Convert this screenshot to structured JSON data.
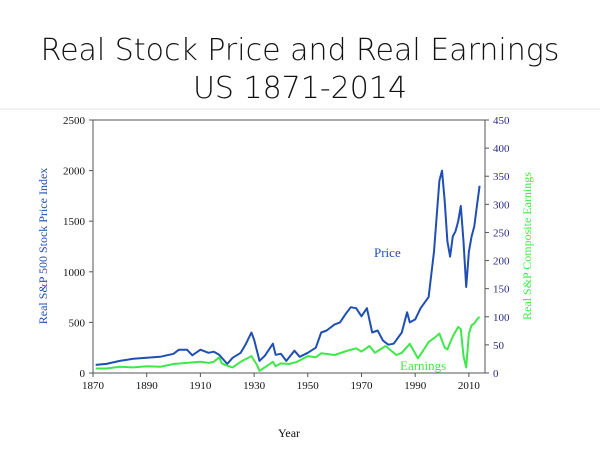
{
  "title_line_1": "Real Stock Price and Real Earnings",
  "title_line_2": "US 1871-2014",
  "colors": {
    "price": "#1f4fb4",
    "earnings": "#3fe84a",
    "axis": "#444444",
    "right_axis_text": "#2a2a8a"
  },
  "chart_data": {
    "type": "line",
    "title": "Real Stock Price and Real Earnings US 1871-2014",
    "xlabel": "Year",
    "ylabel_left": "Real S&P 500 Stock Price Index",
    "ylabel_right": "Real S&P Composite Earnings",
    "xlim": [
      1870,
      2016
    ],
    "ylim_left": [
      0,
      2500
    ],
    "ylim_right": [
      0,
      450
    ],
    "x_ticks": [
      "1870",
      "1890",
      "1910",
      "1930",
      "1950",
      "1970",
      "1990",
      "2010"
    ],
    "y_ticks_left": [
      "0",
      "500",
      "1000",
      "1500",
      "2000",
      "2500"
    ],
    "y_ticks_right": [
      "0",
      "50",
      "100",
      "150",
      "200",
      "250",
      "300",
      "350",
      "400",
      "450"
    ],
    "grid": false,
    "series": [
      {
        "name": "Price",
        "axis": "left",
        "points": [
          [
            1871,
            80
          ],
          [
            1875,
            90
          ],
          [
            1880,
            120
          ],
          [
            1885,
            140
          ],
          [
            1890,
            150
          ],
          [
            1895,
            160
          ],
          [
            1900,
            190
          ],
          [
            1902,
            230
          ],
          [
            1905,
            230
          ],
          [
            1907,
            175
          ],
          [
            1910,
            230
          ],
          [
            1913,
            200
          ],
          [
            1915,
            210
          ],
          [
            1917,
            180
          ],
          [
            1920,
            90
          ],
          [
            1922,
            150
          ],
          [
            1925,
            200
          ],
          [
            1927,
            290
          ],
          [
            1929,
            400
          ],
          [
            1930,
            330
          ],
          [
            1932,
            120
          ],
          [
            1934,
            170
          ],
          [
            1937,
            290
          ],
          [
            1938,
            180
          ],
          [
            1940,
            190
          ],
          [
            1942,
            120
          ],
          [
            1945,
            220
          ],
          [
            1947,
            160
          ],
          [
            1950,
            200
          ],
          [
            1953,
            250
          ],
          [
            1955,
            400
          ],
          [
            1957,
            420
          ],
          [
            1960,
            480
          ],
          [
            1962,
            500
          ],
          [
            1964,
            580
          ],
          [
            1966,
            650
          ],
          [
            1968,
            640
          ],
          [
            1970,
            560
          ],
          [
            1972,
            640
          ],
          [
            1974,
            400
          ],
          [
            1976,
            420
          ],
          [
            1978,
            320
          ],
          [
            1980,
            280
          ],
          [
            1982,
            290
          ],
          [
            1985,
            400
          ],
          [
            1987,
            600
          ],
          [
            1988,
            500
          ],
          [
            1990,
            530
          ],
          [
            1992,
            640
          ],
          [
            1995,
            750
          ],
          [
            1997,
            1200
          ],
          [
            1998,
            1550
          ],
          [
            1999,
            1900
          ],
          [
            2000,
            2000
          ],
          [
            2001,
            1700
          ],
          [
            2002,
            1300
          ],
          [
            2003,
            1150
          ],
          [
            2004,
            1350
          ],
          [
            2005,
            1400
          ],
          [
            2006,
            1500
          ],
          [
            2007,
            1650
          ],
          [
            2008,
            1300
          ],
          [
            2009,
            850
          ],
          [
            2010,
            1200
          ],
          [
            2011,
            1350
          ],
          [
            2012,
            1450
          ],
          [
            2013,
            1650
          ],
          [
            2014,
            1850
          ]
        ]
      },
      {
        "name": "Earnings",
        "axis": "right",
        "points": [
          [
            1871,
            8
          ],
          [
            1875,
            8
          ],
          [
            1880,
            11
          ],
          [
            1885,
            10
          ],
          [
            1890,
            12
          ],
          [
            1895,
            11
          ],
          [
            1900,
            16
          ],
          [
            1905,
            18
          ],
          [
            1910,
            20
          ],
          [
            1913,
            18
          ],
          [
            1915,
            20
          ],
          [
            1917,
            28
          ],
          [
            1918,
            17
          ],
          [
            1920,
            13
          ],
          [
            1922,
            10
          ],
          [
            1925,
            20
          ],
          [
            1929,
            30
          ],
          [
            1931,
            15
          ],
          [
            1932,
            4
          ],
          [
            1934,
            10
          ],
          [
            1937,
            20
          ],
          [
            1938,
            12
          ],
          [
            1940,
            17
          ],
          [
            1943,
            16
          ],
          [
            1946,
            20
          ],
          [
            1950,
            30
          ],
          [
            1953,
            28
          ],
          [
            1955,
            35
          ],
          [
            1960,
            32
          ],
          [
            1965,
            40
          ],
          [
            1968,
            44
          ],
          [
            1970,
            38
          ],
          [
            1973,
            48
          ],
          [
            1975,
            36
          ],
          [
            1977,
            42
          ],
          [
            1979,
            48
          ],
          [
            1981,
            40
          ],
          [
            1983,
            32
          ],
          [
            1985,
            36
          ],
          [
            1988,
            52
          ],
          [
            1991,
            26
          ],
          [
            1993,
            40
          ],
          [
            1995,
            55
          ],
          [
            1997,
            62
          ],
          [
            1999,
            70
          ],
          [
            2001,
            45
          ],
          [
            2002,
            42
          ],
          [
            2004,
            65
          ],
          [
            2006,
            82
          ],
          [
            2007,
            78
          ],
          [
            2008,
            30
          ],
          [
            2009,
            10
          ],
          [
            2010,
            70
          ],
          [
            2011,
            85
          ],
          [
            2012,
            88
          ],
          [
            2013,
            95
          ],
          [
            2014,
            100
          ]
        ]
      }
    ]
  }
}
